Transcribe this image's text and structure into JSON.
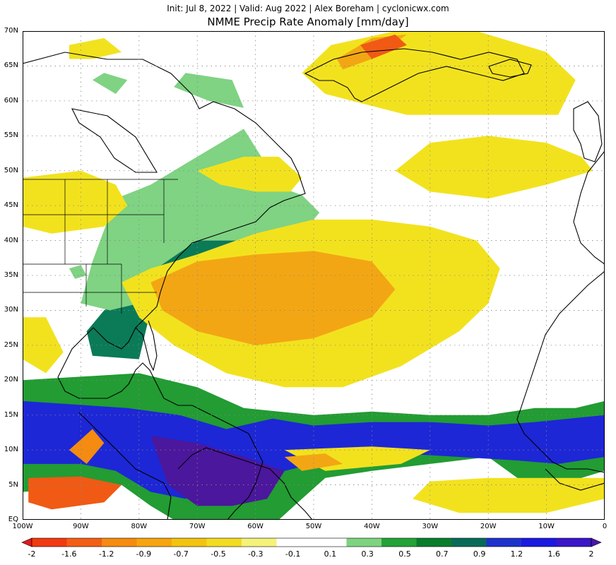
{
  "header": {
    "subtitle": "Init: Jul 8, 2022 | Valid: Aug 2022 | Alex Boreham | cyclonicwx.com",
    "title": "NMME Precip Rate Anomaly [mm/day]"
  },
  "map": {
    "projection": "equirectangular",
    "lon_range": [
      -100,
      0
    ],
    "lat_range": [
      0,
      70
    ],
    "lat_ticks": [
      {
        "value": 70,
        "label": "70N"
      },
      {
        "value": 65,
        "label": "65N"
      },
      {
        "value": 60,
        "label": "60N"
      },
      {
        "value": 55,
        "label": "55N"
      },
      {
        "value": 50,
        "label": "50N"
      },
      {
        "value": 45,
        "label": "45N"
      },
      {
        "value": 40,
        "label": "40N"
      },
      {
        "value": 35,
        "label": "35N"
      },
      {
        "value": 30,
        "label": "30N"
      },
      {
        "value": 25,
        "label": "25N"
      },
      {
        "value": 20,
        "label": "20N"
      },
      {
        "value": 15,
        "label": "15N"
      },
      {
        "value": 10,
        "label": "10N"
      },
      {
        "value": 5,
        "label": "5N"
      },
      {
        "value": 0,
        "label": "EQ"
      }
    ],
    "lon_ticks": [
      {
        "value": -100,
        "label": "100W"
      },
      {
        "value": -90,
        "label": "90W"
      },
      {
        "value": -80,
        "label": "80W"
      },
      {
        "value": -70,
        "label": "70W"
      },
      {
        "value": -60,
        "label": "60W"
      },
      {
        "value": -50,
        "label": "50W"
      },
      {
        "value": -40,
        "label": "40W"
      },
      {
        "value": -30,
        "label": "30W"
      },
      {
        "value": -20,
        "label": "20W"
      },
      {
        "value": -10,
        "label": "10W"
      },
      {
        "value": 0,
        "label": "0"
      }
    ],
    "gridlines": "dotted",
    "coastline_color": "#000000",
    "anomaly_regions": [
      {
        "level": 0.5,
        "poly": [
          [
            -100,
            20
          ],
          [
            -80,
            21
          ],
          [
            -70,
            19
          ],
          [
            -62,
            16
          ],
          [
            -50,
            15
          ],
          [
            -40,
            15.5
          ],
          [
            -30,
            15
          ],
          [
            -20,
            15
          ],
          [
            -12,
            16
          ],
          [
            -5,
            16
          ],
          [
            0,
            17
          ],
          [
            0,
            7
          ],
          [
            -8,
            5
          ],
          [
            -15,
            6
          ],
          [
            -20,
            9
          ],
          [
            -30,
            8
          ],
          [
            -40,
            7
          ],
          [
            -48,
            6
          ],
          [
            -52,
            3
          ],
          [
            -56,
            0
          ],
          [
            -74,
            0
          ],
          [
            -78,
            2
          ],
          [
            -83,
            5
          ],
          [
            -100,
            4
          ]
        ]
      },
      {
        "level": 0.9,
        "poly": [
          [
            -100,
            17
          ],
          [
            -82,
            16
          ],
          [
            -73,
            15
          ],
          [
            -65,
            13
          ],
          [
            -57,
            14.5
          ],
          [
            -50,
            13.5
          ],
          [
            -40,
            14
          ],
          [
            -30,
            14
          ],
          [
            -20,
            13.5
          ],
          [
            -12,
            14
          ],
          [
            0,
            15
          ],
          [
            0,
            9
          ],
          [
            -8,
            8
          ],
          [
            -15,
            8.5
          ],
          [
            -25,
            9
          ],
          [
            -35,
            9.5
          ],
          [
            -45,
            9
          ],
          [
            -55,
            7
          ],
          [
            -65,
            5
          ],
          [
            -72,
            3
          ],
          [
            -78,
            4
          ],
          [
            -84,
            7
          ],
          [
            -90,
            8
          ],
          [
            -100,
            8
          ]
        ]
      },
      {
        "level": 1.6,
        "poly": [
          [
            -78,
            12
          ],
          [
            -70,
            11
          ],
          [
            -62,
            9
          ],
          [
            -55,
            7
          ],
          [
            -58,
            3
          ],
          [
            -64,
            2
          ],
          [
            -70,
            2
          ],
          [
            -75,
            5
          ]
        ]
      },
      {
        "level": 0.7,
        "poly": [
          [
            -82,
            40
          ],
          [
            -75,
            42.5
          ],
          [
            -66,
            43.5
          ],
          [
            -55,
            44
          ],
          [
            -50,
            43
          ],
          [
            -58,
            40
          ],
          [
            -66,
            38.5
          ],
          [
            -74,
            35
          ],
          [
            -78,
            30
          ],
          [
            -80,
            23
          ],
          [
            -88,
            23.5
          ],
          [
            -89,
            27
          ],
          [
            -86,
            30
          ],
          [
            -80,
            33
          ]
        ]
      },
      {
        "level": 0.3,
        "poly": [
          [
            -84,
            46
          ],
          [
            -78,
            48
          ],
          [
            -72,
            51
          ],
          [
            -66,
            54
          ],
          [
            -62,
            56
          ],
          [
            -59,
            52
          ],
          [
            -57,
            48
          ],
          [
            -52,
            46.5
          ],
          [
            -49,
            44
          ],
          [
            -52,
            41
          ],
          [
            -60,
            40
          ],
          [
            -70,
            40
          ],
          [
            -77,
            36
          ],
          [
            -80,
            31
          ],
          [
            -85,
            30
          ],
          [
            -90,
            31
          ],
          [
            -88,
            37
          ]
        ]
      },
      {
        "level": 0.3,
        "poly": [
          [
            -74,
            62
          ],
          [
            -68,
            60
          ],
          [
            -62,
            59
          ],
          [
            -64,
            63
          ],
          [
            -72,
            64
          ]
        ]
      },
      {
        "level": 0.3,
        "poly": [
          [
            -88,
            63
          ],
          [
            -84,
            61
          ],
          [
            -82,
            63
          ],
          [
            -86,
            64
          ]
        ]
      },
      {
        "level": -0.3,
        "poly": [
          [
            -100,
            49
          ],
          [
            -90,
            50
          ],
          [
            -84,
            48
          ],
          [
            -82,
            45
          ],
          [
            -86,
            42
          ],
          [
            -95,
            41
          ],
          [
            -100,
            42
          ]
        ]
      },
      {
        "level": -0.3,
        "poly": [
          [
            -100,
            29
          ],
          [
            -96,
            29
          ],
          [
            -93,
            24
          ],
          [
            -96,
            21
          ],
          [
            -100,
            23
          ]
        ]
      },
      {
        "level": -0.3,
        "poly": [
          [
            -92,
            68
          ],
          [
            -86,
            69
          ],
          [
            -83,
            67
          ],
          [
            -88,
            66
          ],
          [
            -92,
            66
          ]
        ]
      },
      {
        "level": -0.3,
        "poly": [
          [
            -70,
            50
          ],
          [
            -62,
            52
          ],
          [
            -56,
            52
          ],
          [
            -52,
            49
          ],
          [
            -54,
            47
          ],
          [
            -60,
            47
          ],
          [
            -66,
            48
          ]
        ]
      },
      {
        "level": -0.3,
        "poly": [
          [
            -47,
            68
          ],
          [
            -36,
            70
          ],
          [
            -22,
            70
          ],
          [
            -10,
            67
          ],
          [
            -5,
            63
          ],
          [
            -8,
            58
          ],
          [
            -20,
            58
          ],
          [
            -34,
            58
          ],
          [
            -48,
            61
          ],
          [
            -52,
            64
          ]
        ]
      },
      {
        "level": -0.3,
        "poly": [
          [
            -20,
            55
          ],
          [
            -10,
            54
          ],
          [
            -4,
            52
          ],
          [
            -2,
            50
          ],
          [
            -10,
            48
          ],
          [
            -20,
            46
          ],
          [
            -30,
            47
          ],
          [
            -36,
            50
          ],
          [
            -30,
            54
          ]
        ]
      },
      {
        "level": -0.3,
        "poly": [
          [
            -83,
            34
          ],
          [
            -78,
            36
          ],
          [
            -70,
            38
          ],
          [
            -60,
            41
          ],
          [
            -50,
            43
          ],
          [
            -40,
            43
          ],
          [
            -30,
            42
          ],
          [
            -22,
            40
          ],
          [
            -18,
            36
          ],
          [
            -20,
            31
          ],
          [
            -25,
            27
          ],
          [
            -35,
            22
          ],
          [
            -45,
            19
          ],
          [
            -55,
            19
          ],
          [
            -65,
            21
          ],
          [
            -74,
            25
          ],
          [
            -80,
            29
          ]
        ]
      },
      {
        "level": -0.3,
        "poly": [
          [
            -55,
            10
          ],
          [
            -40,
            10.5
          ],
          [
            -30,
            10
          ],
          [
            -35,
            8
          ],
          [
            -48,
            7
          ]
        ]
      },
      {
        "level": -0.3,
        "poly": [
          [
            -30,
            5.5
          ],
          [
            -20,
            6
          ],
          [
            -10,
            6
          ],
          [
            0,
            6
          ],
          [
            0,
            3
          ],
          [
            -10,
            1
          ],
          [
            -25,
            1
          ],
          [
            -33,
            3
          ]
        ]
      },
      {
        "level": -0.7,
        "poly": [
          [
            -78,
            34
          ],
          [
            -70,
            37
          ],
          [
            -60,
            38
          ],
          [
            -50,
            38.5
          ],
          [
            -40,
            37
          ],
          [
            -36,
            33
          ],
          [
            -40,
            29
          ],
          [
            -50,
            26
          ],
          [
            -60,
            25
          ],
          [
            -70,
            27
          ],
          [
            -76,
            30
          ]
        ]
      },
      {
        "level": -0.7,
        "poly": [
          [
            -46,
            66
          ],
          [
            -40,
            69
          ],
          [
            -34,
            69.5
          ],
          [
            -40,
            66
          ],
          [
            -45,
            64.5
          ]
        ]
      },
      {
        "level": -0.7,
        "poly": [
          [
            -55,
            9
          ],
          [
            -48,
            9.5
          ],
          [
            -45,
            8
          ],
          [
            -52,
            7
          ]
        ]
      },
      {
        "level": -1.2,
        "poly": [
          [
            -99,
            6
          ],
          [
            -90,
            6.2
          ],
          [
            -83,
            5
          ],
          [
            -86,
            2.5
          ],
          [
            -95,
            1.5
          ],
          [
            -99,
            2.5
          ]
        ]
      },
      {
        "level": -1.2,
        "poly": [
          [
            -42,
            68
          ],
          [
            -36,
            69.5
          ],
          [
            -34,
            68
          ],
          [
            -40,
            66
          ]
        ]
      },
      {
        "level": -0.9,
        "poly": [
          [
            -92,
            10
          ],
          [
            -88,
            13
          ],
          [
            -86,
            11
          ],
          [
            -89,
            8
          ]
        ]
      },
      {
        "level": 0.3,
        "poly": [
          [
            -92,
            36
          ],
          [
            -90,
            36.5
          ],
          [
            -89,
            35
          ],
          [
            -91,
            34.5
          ]
        ]
      }
    ]
  },
  "colorbar": {
    "labels": [
      "-2",
      "-1.6",
      "-1.2",
      "-0.9",
      "-0.7",
      "-0.5",
      "-0.3",
      "-0.1",
      "0.1",
      "0.3",
      "0.5",
      "0.7",
      "0.9",
      "1.2",
      "1.6",
      "2"
    ],
    "colors": [
      "#e41a1c",
      "#f13a12",
      "#f35e16",
      "#f58b10",
      "#f6a50f",
      "#f3c40e",
      "#f3dc1f",
      "#f5f27a",
      "#ffffff",
      "#ffffff",
      "#7ed380",
      "#24a236",
      "#0a7d2a",
      "#076b58",
      "#1f32cc",
      "#1a1ae0",
      "#3a16c8",
      "#4a17a8"
    ],
    "extends": "both"
  }
}
